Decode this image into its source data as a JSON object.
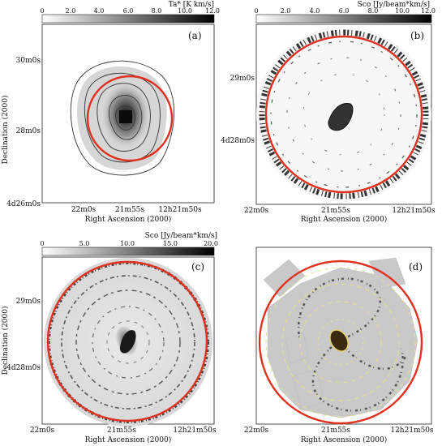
{
  "panels": [
    {
      "label": "(a)",
      "colorbar": {
        "title": "Ta* [K km/s]",
        "ticks": [
          "0",
          "2.0",
          "4.0",
          "6.0",
          "8.0",
          "10.0",
          "12.0"
        ]
      },
      "ylabel": "Declination (2000)",
      "yticks": [
        "30m0s",
        "28m0s",
        "4d26m0s"
      ],
      "xlabel": "Right Ascension (2000)",
      "xticks": [
        "22m0s",
        "21m55s",
        "12h21m50s"
      ]
    },
    {
      "label": "(b)",
      "colorbar": {
        "title": "Sco [Jy/beam*km/s]",
        "ticks": [
          "0",
          "2.0",
          "4.0",
          "6.0",
          "8.0",
          "10.0",
          "12.0"
        ]
      },
      "yticks": [
        "29m0s",
        "4d28m0s"
      ],
      "xlabel": "Right Ascension (2000)",
      "xticks": [
        "22m0s",
        "21m55s",
        "12h21m50s"
      ]
    },
    {
      "label": "(c)",
      "colorbar": {
        "title": "Sco [Jy/beam*km/s]",
        "ticks": [
          "0",
          "5.0",
          "10.0",
          "15.0",
          "20.0"
        ]
      },
      "ylabel": "Declination (2000)",
      "yticks": [
        "29m0s",
        "4d28m0s"
      ],
      "xlabel": "Right Ascension (2000)",
      "xticks": [
        "22m0s",
        "21m55s",
        "12h21m50s"
      ]
    },
    {
      "label": "(d)",
      "xlabel": "Right Ascension (2000)",
      "xticks": [
        "22m0s",
        "21m55s",
        "12h21m50s"
      ]
    }
  ],
  "colors": {
    "circle": "#e0301f",
    "contour": "#333333",
    "overlay_contour": "#e8e08a"
  }
}
